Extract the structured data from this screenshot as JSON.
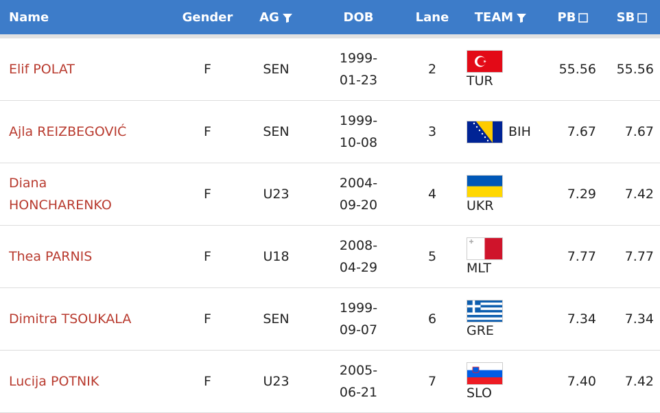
{
  "table": {
    "header": [
      "Name",
      "Gender",
      "AG",
      "DOB",
      "Lane",
      "TEAM",
      "PB",
      "SB"
    ],
    "rows": [
      [
        "Elif POLAT",
        "F",
        "SEN",
        "1999-01-23",
        2,
        "TUR",
        "55.56",
        "55.56"
      ],
      [
        "Ajla REIZBEGOVIĆ",
        "F",
        "SEN",
        "1999-10-08",
        3,
        "BIH",
        "7.67",
        "7.67"
      ],
      [
        "Diana HONCHARENKO",
        "F",
        "U23",
        "2004-09-20",
        4,
        "UKR",
        "7.29",
        "7.42"
      ],
      [
        "Thea PARNIS",
        "F",
        "U18",
        "2008-04-29",
        5,
        "MLT",
        "7.77",
        "7.77"
      ],
      [
        "Dimitra TSOUKALA",
        "F",
        "SEN",
        "1999-09-07",
        6,
        "GRE",
        "7.34",
        "7.34"
      ],
      [
        "Lucija POTNIK",
        "F",
        "U23",
        "2005-06-21",
        7,
        "SLO",
        "7.40",
        "7.42"
      ]
    ]
  }
}
